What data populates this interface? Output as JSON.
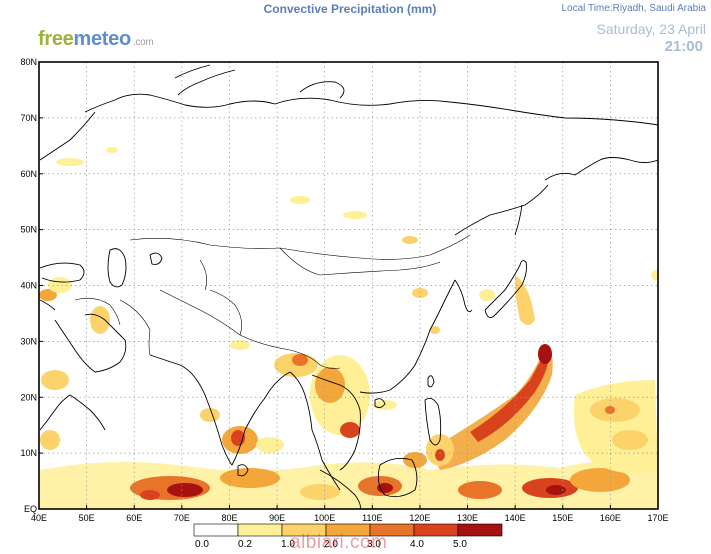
{
  "header": {
    "title": "Convective Precipitation  (mm)",
    "local_time": "Local Time:Riyadh, Saudi Arabia",
    "date": "Saturday, 23 April",
    "time": "21:00"
  },
  "logo": {
    "part1": "free",
    "part2": "meteo",
    "part3": ".com"
  },
  "map": {
    "lon_labels": [
      "40E",
      "50E",
      "60E",
      "70E",
      "80E",
      "90E",
      "100E",
      "110E",
      "120E",
      "130E",
      "140E",
      "150E",
      "160E",
      "170E"
    ],
    "lat_labels": [
      "EQ",
      "10N",
      "20N",
      "30N",
      "40N",
      "50N",
      "60N",
      "70N",
      "80N"
    ],
    "lon_values": [
      40,
      50,
      60,
      70,
      80,
      90,
      100,
      110,
      120,
      130,
      140,
      150,
      160,
      170
    ],
    "lat_values": [
      0,
      10,
      20,
      30,
      40,
      50,
      60,
      70,
      80
    ],
    "lon_range": [
      40,
      170
    ],
    "lat_range": [
      0,
      80
    ]
  },
  "legend": {
    "labels": [
      "0.0",
      "0.2",
      "1.0",
      "2.0",
      "3.0",
      "4.0",
      "5.0"
    ],
    "colors": [
      "#ffffff",
      "#ffef96",
      "#fbd36a",
      "#f3a63a",
      "#e8742a",
      "#d8431e",
      "#a51210"
    ]
  },
  "watermark": "albiari.com"
}
